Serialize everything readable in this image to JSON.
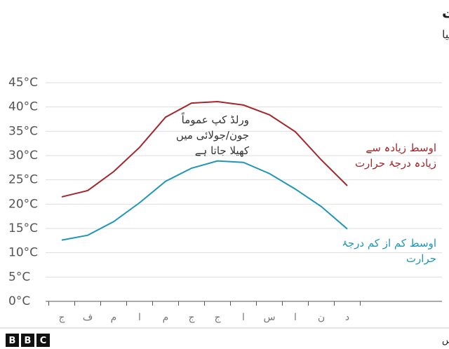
{
  "chart_data": {
    "type": "line",
    "title": "دوحہ، قطر میں اوسط درجۂ حرارت",
    "subtitle": "شدید گرمی کی وجہ سے ورلڈ کپ نومبر میں منتقل کیا گیا",
    "annotation": [
      "ورلڈ کپ عموماً",
      "جون/جولائی میں",
      "کھیلا جاتا ہے"
    ],
    "categories": [
      "ج",
      "ف",
      "م",
      "ا",
      "م",
      "ج",
      "ج",
      "ا",
      "س",
      "ا",
      "ن",
      "د"
    ],
    "series": [
      {
        "name": "اوسط زیادہ سے زیادہ درجۂ حرارت",
        "color": "#a5262b",
        "values": [
          21.5,
          22.8,
          26.7,
          31.7,
          37.9,
          40.8,
          41.1,
          40.4,
          38.4,
          34.9,
          29.1,
          23.8
        ]
      },
      {
        "name": "اوسط کم از کم درجۂ حرارت",
        "color": "#1d97b5",
        "values": [
          12.6,
          13.6,
          16.4,
          20.3,
          24.7,
          27.4,
          28.9,
          28.6,
          26.3,
          23.1,
          19.5,
          14.9
        ]
      }
    ],
    "ylim": [
      0,
      45
    ],
    "yticks": [
      {
        "value": 0,
        "label": "0°C"
      },
      {
        "value": 5,
        "label": "5°C"
      },
      {
        "value": 10,
        "label": "10°C"
      },
      {
        "value": 15,
        "label": "15°C"
      },
      {
        "value": 20,
        "label": "20°C"
      },
      {
        "value": 25,
        "label": "25°C"
      },
      {
        "value": 30,
        "label": "30°C"
      },
      {
        "value": 35,
        "label": "35°C"
      },
      {
        "value": 40,
        "label": "40°C"
      },
      {
        "value": 45,
        "label": "45°C"
      }
    ],
    "grid": true,
    "source": "ذریعہ: ویدر ایٹلس",
    "logo": [
      "B",
      "B",
      "C"
    ]
  }
}
